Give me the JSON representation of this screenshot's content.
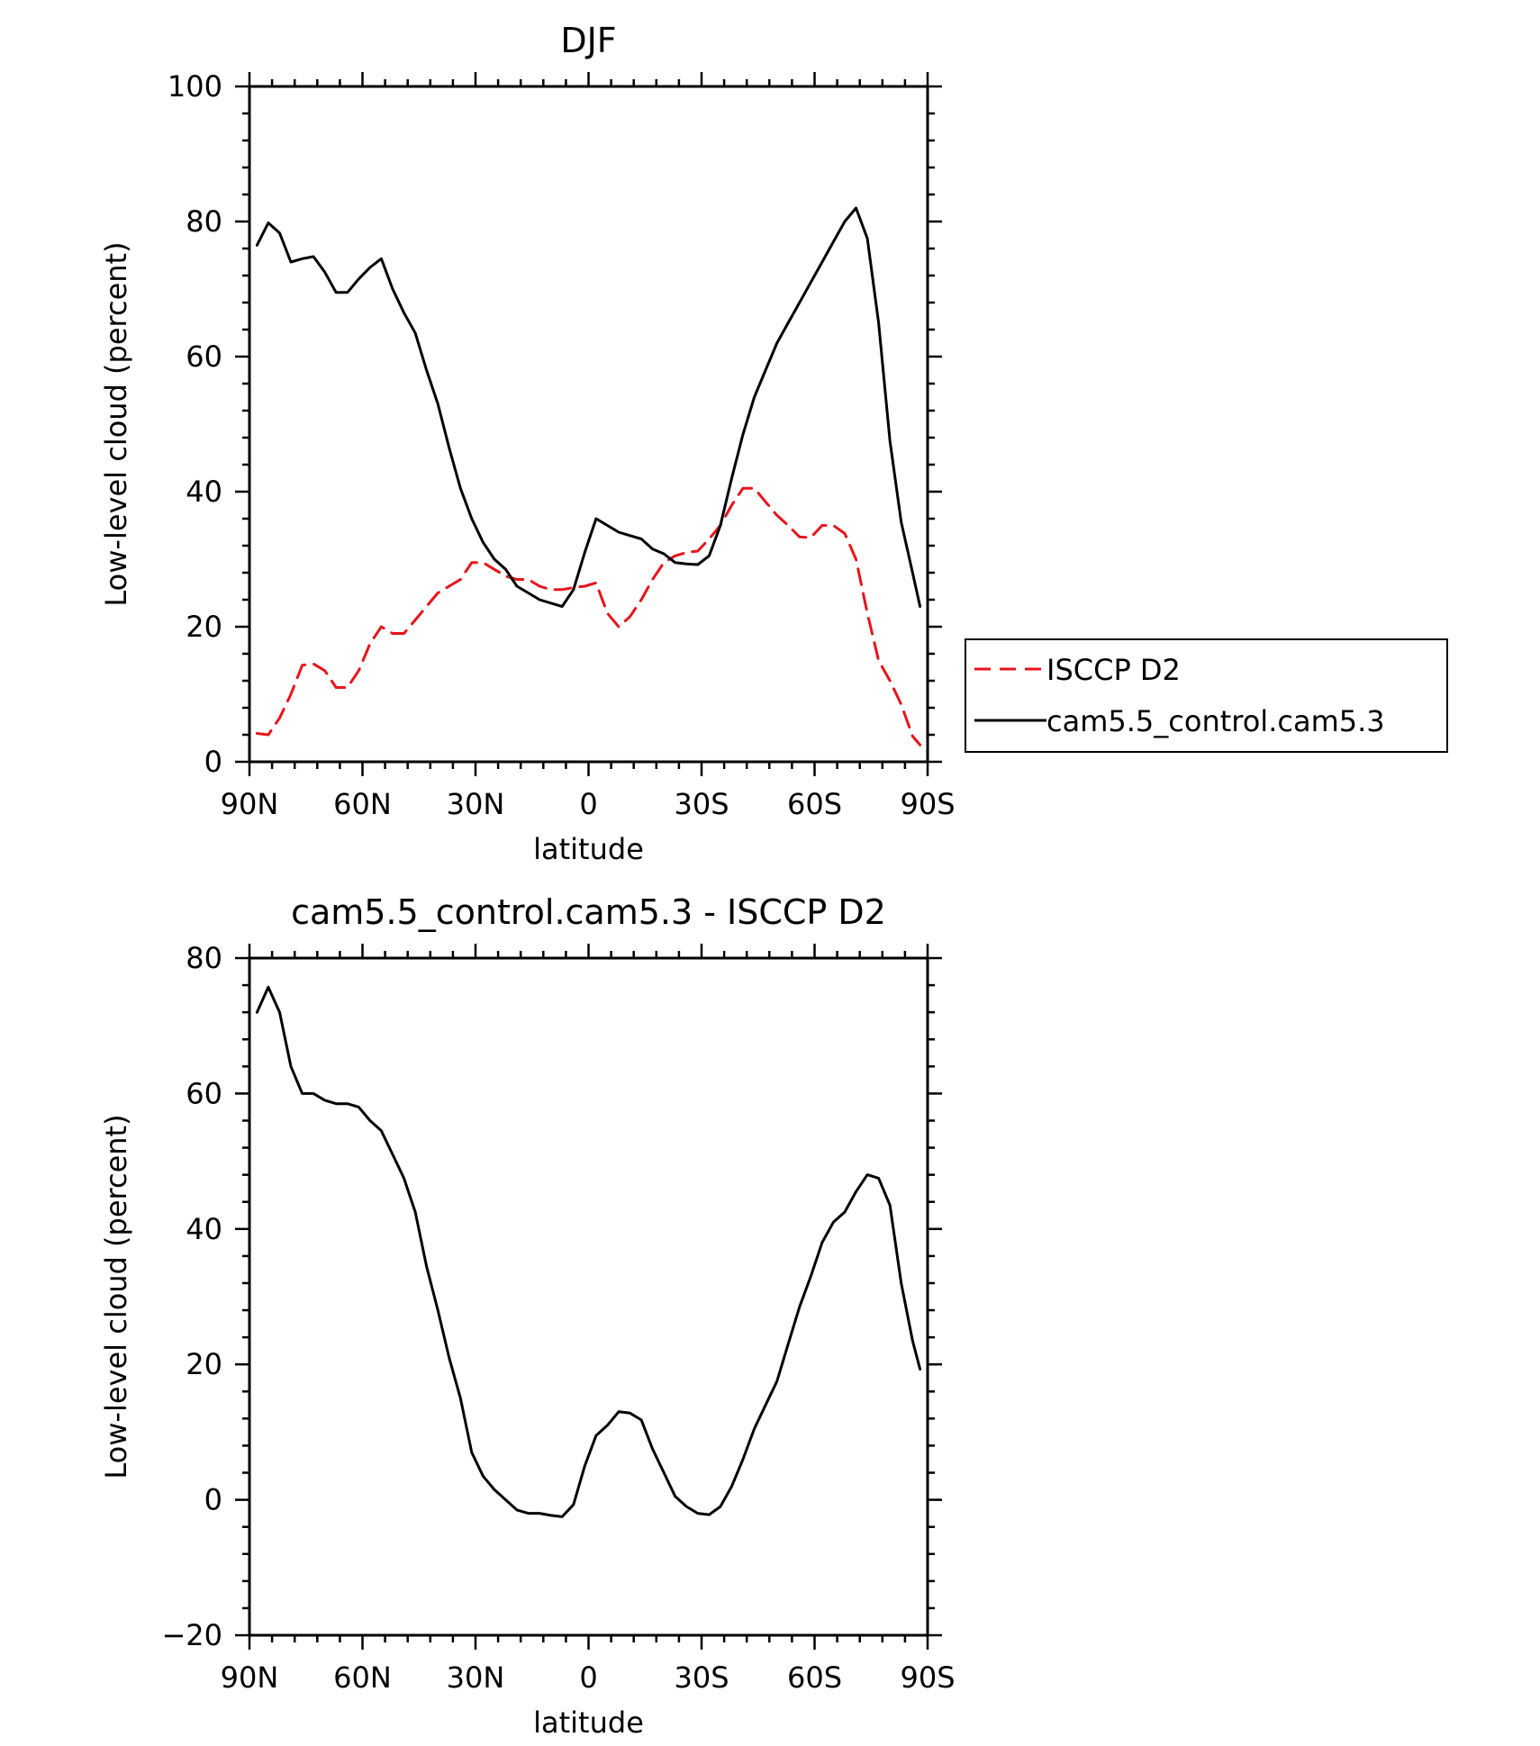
{
  "colors": {
    "observed": "#e8141b",
    "model": "#000000"
  },
  "chart_data": [
    {
      "type": "line",
      "title": "DJF",
      "xlabel": "latitude",
      "ylabel": "Low-level cloud (percent)",
      "xlim": [
        90,
        -90
      ],
      "ylim": [
        0,
        100
      ],
      "x_tick_values": [
        90,
        60,
        30,
        0,
        -30,
        -60,
        -90
      ],
      "x_tick_labels": [
        "90N",
        "60N",
        "30N",
        "0",
        "30S",
        "60S",
        "90S"
      ],
      "y_ticks": [
        0,
        20,
        40,
        60,
        80,
        100
      ],
      "grid": false,
      "legend_position": "right",
      "series": [
        {
          "name": "ISCCP D2",
          "color": "#e8141b",
          "dash": "dashed",
          "x": [
            88,
            85,
            82,
            79,
            76,
            73,
            70,
            67,
            64,
            61,
            58,
            55,
            52,
            49,
            46,
            43,
            40,
            37,
            34,
            31,
            28,
            25,
            22,
            19,
            16,
            13,
            10,
            7,
            4,
            1,
            -2,
            -5,
            -8,
            -11,
            -14,
            -17,
            -20,
            -23,
            -26,
            -29,
            -32,
            -35,
            -38,
            -41,
            -44,
            -47,
            -50,
            -53,
            -56,
            -59,
            -62,
            -65,
            -68,
            -71,
            -74,
            -77,
            -80,
            -83,
            -86,
            -88
          ],
          "y": [
            4.2,
            4.0,
            6.5,
            10.0,
            14.3,
            14.5,
            13.5,
            11.0,
            11.0,
            13.5,
            17.5,
            20.0,
            19.0,
            19.0,
            21.0,
            23.0,
            25.0,
            26.0,
            27.0,
            29.5,
            29.5,
            28.5,
            27.5,
            27.0,
            27.0,
            26.0,
            25.5,
            25.5,
            25.8,
            26.0,
            26.5,
            22.0,
            20.0,
            21.5,
            24.0,
            27.0,
            29.5,
            30.5,
            31.0,
            31.2,
            33.0,
            35.0,
            38.0,
            40.5,
            40.5,
            38.5,
            36.5,
            35.0,
            33.3,
            33.2,
            35.0,
            35.0,
            33.8,
            30.0,
            22.0,
            15.0,
            12.0,
            8.5,
            3.8,
            2.5
          ]
        },
        {
          "name": "cam5.5_control.cam5.3",
          "color": "#000000",
          "dash": "solid",
          "x": [
            88,
            85,
            82,
            79,
            76,
            73,
            70,
            67,
            64,
            61,
            58,
            55,
            52,
            49,
            46,
            43,
            40,
            37,
            34,
            31,
            28,
            25,
            22,
            19,
            16,
            13,
            10,
            7,
            4,
            1,
            -2,
            -5,
            -8,
            -11,
            -14,
            -17,
            -20,
            -23,
            -26,
            -29,
            -32,
            -35,
            -38,
            -41,
            -44,
            -47,
            -50,
            -53,
            -56,
            -59,
            -62,
            -65,
            -68,
            -71,
            -74,
            -77,
            -80,
            -83,
            -86,
            -88
          ],
          "y": [
            76.5,
            79.8,
            78.3,
            74.0,
            74.5,
            74.8,
            72.5,
            69.5,
            69.5,
            71.5,
            73.2,
            74.5,
            70.0,
            66.5,
            63.5,
            58.0,
            53.0,
            46.5,
            40.5,
            36.0,
            32.5,
            30.0,
            28.5,
            26.0,
            25.0,
            24.0,
            23.5,
            23.0,
            25.5,
            31.0,
            36.0,
            35.0,
            34.0,
            33.5,
            33.0,
            31.5,
            30.8,
            29.5,
            29.3,
            29.2,
            30.5,
            35.0,
            42.0,
            48.5,
            54.0,
            58.0,
            62.0,
            65.0,
            68.0,
            71.0,
            74.0,
            77.0,
            80.0,
            82.0,
            77.5,
            65.0,
            47.5,
            35.5,
            28.0,
            23.0
          ]
        }
      ]
    },
    {
      "type": "line",
      "title": "cam5.5_control.cam5.3 - ISCCP D2",
      "xlabel": "latitude",
      "ylabel": "Low-level cloud (percent)",
      "xlim": [
        90,
        -90
      ],
      "ylim": [
        -20,
        80
      ],
      "x_tick_values": [
        90,
        60,
        30,
        0,
        -30,
        -60,
        -90
      ],
      "x_tick_labels": [
        "90N",
        "60N",
        "30N",
        "0",
        "30S",
        "60S",
        "90S"
      ],
      "y_ticks": [
        -20,
        0,
        20,
        40,
        60,
        80
      ],
      "grid": false,
      "series": [
        {
          "color": "#000000",
          "dash": "solid",
          "x": [
            88,
            85,
            82,
            79,
            76,
            73,
            70,
            67,
            64,
            61,
            58,
            55,
            52,
            49,
            46,
            43,
            40,
            37,
            34,
            31,
            28,
            25,
            22,
            19,
            16,
            13,
            10,
            7,
            4,
            1,
            -2,
            -5,
            -8,
            -11,
            -14,
            -17,
            -20,
            -23,
            -26,
            -29,
            -32,
            -35,
            -38,
            -41,
            -44,
            -47,
            -50,
            -53,
            -56,
            -59,
            -62,
            -65,
            -68,
            -71,
            -74,
            -77,
            -80,
            -83,
            -86,
            -88
          ],
          "y": [
            72.0,
            75.7,
            72.0,
            64.0,
            60.0,
            60.0,
            59.0,
            58.5,
            58.5,
            58.0,
            56.0,
            54.5,
            51.0,
            47.5,
            42.5,
            34.5,
            28.0,
            21.0,
            15.0,
            7.0,
            3.5,
            1.5,
            0.0,
            -1.5,
            -2.0,
            -2.0,
            -2.3,
            -2.5,
            -0.7,
            5.0,
            9.5,
            11.0,
            13.0,
            12.8,
            11.8,
            7.5,
            4.0,
            0.5,
            -1.0,
            -2.0,
            -2.2,
            -1.0,
            2.0,
            6.0,
            10.5,
            14.0,
            17.5,
            23.0,
            28.5,
            33.0,
            38.0,
            41.0,
            42.5,
            45.5,
            48.0,
            47.5,
            43.5,
            32.0,
            23.5,
            19.3
          ]
        }
      ]
    }
  ]
}
